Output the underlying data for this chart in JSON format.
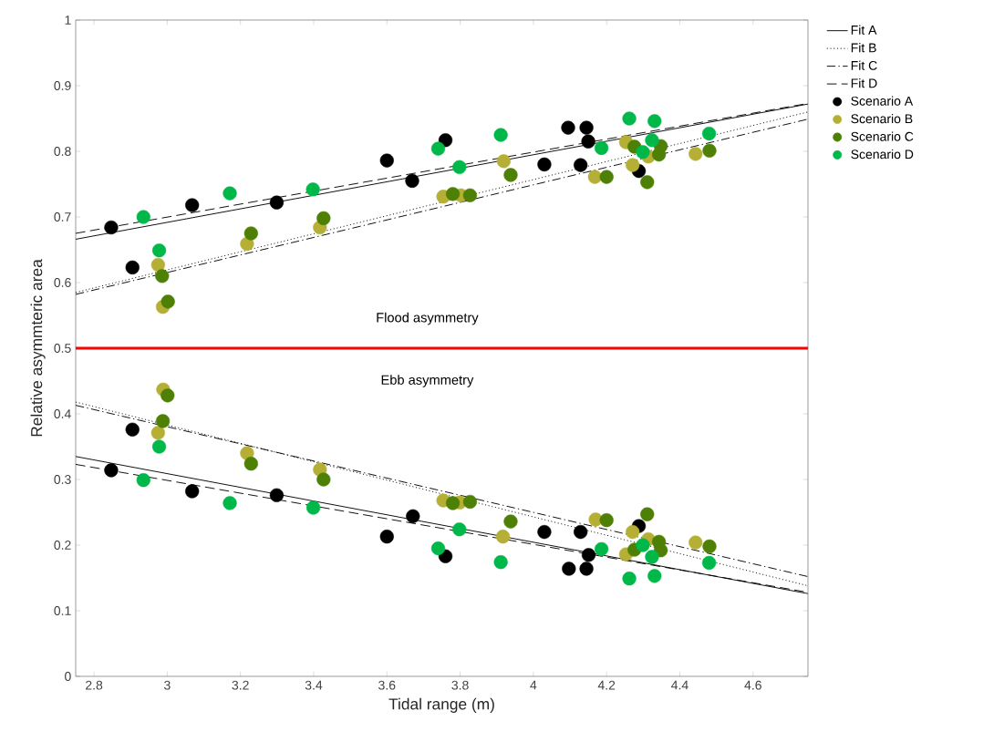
{
  "chart_data": {
    "type": "scatter",
    "xlabel": "Tidal range (m)",
    "ylabel": "Relative asymmteric area",
    "xlim": [
      2.75,
      4.75
    ],
    "ylim": [
      0,
      1
    ],
    "xticks": [
      2.8,
      3,
      3.2,
      3.4,
      3.6,
      3.8,
      4,
      4.2,
      4.4,
      4.6
    ],
    "yticks": [
      0,
      0.1,
      0.2,
      0.3,
      0.4,
      0.5,
      0.6,
      0.7,
      0.8,
      0.9,
      1
    ],
    "grid": false,
    "legend": "top right",
    "marker": "circle",
    "ref_lines": [
      {
        "axis": "y",
        "value": 0.5,
        "color": "#ff0000",
        "line_style": "solid"
      }
    ],
    "annotations": [
      "Flood asymmetry",
      "Ebb asymmetry"
    ],
    "series": [
      {
        "name": "Fit A",
        "type": "line",
        "color": "#000000",
        "line_style": "solid",
        "marker": "none",
        "x": [
          2.75,
          4.75
        ],
        "values": [
          0.666,
          0.872
        ]
      },
      {
        "name": "Fit B",
        "type": "line",
        "color": "#000000",
        "line_style": "dotted",
        "marker": "none",
        "x": [
          2.75,
          4.75
        ],
        "values": [
          0.585,
          0.86
        ]
      },
      {
        "name": "Fit C",
        "type": "line",
        "color": "#000000",
        "line_style": "dashdot",
        "marker": "none",
        "x": [
          2.75,
          4.75
        ],
        "values": [
          0.582,
          0.849
        ]
      },
      {
        "name": "Fit D",
        "type": "line",
        "color": "#000000",
        "line_style": "dashed",
        "marker": "none",
        "x": [
          2.75,
          4.75
        ],
        "values": [
          0.675,
          0.873
        ]
      },
      {
        "type": "line",
        "color": "#000000",
        "line_style": "solid",
        "marker": "none",
        "x": [
          2.75,
          4.75
        ],
        "values": [
          0.335,
          0.126
        ]
      },
      {
        "type": "line",
        "color": "#000000",
        "line_style": "dotted",
        "marker": "none",
        "x": [
          2.75,
          4.75
        ],
        "values": [
          0.418,
          0.138
        ]
      },
      {
        "type": "line",
        "color": "#000000",
        "line_style": "dashdot",
        "marker": "none",
        "x": [
          2.75,
          4.75
        ],
        "values": [
          0.413,
          0.152
        ]
      },
      {
        "type": "line",
        "color": "#000000",
        "line_style": "dashed",
        "marker": "none",
        "x": [
          2.75,
          4.75
        ],
        "values": [
          0.323,
          0.128
        ]
      },
      {
        "name": "Scenario A",
        "color": "#000000",
        "x": [
          2.847,
          2.905,
          3.068,
          3.299,
          3.6,
          3.669,
          3.76,
          4.095,
          4.145,
          4.15,
          4.03,
          4.129,
          4.288,
          2.847,
          2.905,
          3.068,
          3.299,
          3.6,
          3.671,
          3.76,
          4.03,
          4.129,
          4.151,
          4.097,
          4.145,
          4.288
        ],
        "values": [
          0.684,
          0.623,
          0.718,
          0.722,
          0.786,
          0.755,
          0.817,
          0.836,
          0.836,
          0.815,
          0.78,
          0.779,
          0.77,
          0.314,
          0.376,
          0.282,
          0.276,
          0.213,
          0.244,
          0.183,
          0.22,
          0.22,
          0.185,
          0.164,
          0.164,
          0.229
        ]
      },
      {
        "name": "Scenario B",
        "color": "#b5b035",
        "x": [
          2.975,
          2.988,
          3.218,
          3.417,
          3.754,
          3.802,
          3.919,
          4.168,
          4.253,
          4.271,
          4.314,
          4.443,
          2.989,
          2.975,
          3.218,
          3.417,
          3.754,
          3.799,
          3.917,
          4.17,
          4.271,
          4.253,
          4.314,
          4.443
        ],
        "values": [
          0.627,
          0.563,
          0.659,
          0.684,
          0.731,
          0.733,
          0.785,
          0.761,
          0.814,
          0.779,
          0.792,
          0.796,
          0.437,
          0.371,
          0.34,
          0.315,
          0.268,
          0.265,
          0.213,
          0.239,
          0.22,
          0.186,
          0.209,
          0.204
        ]
      },
      {
        "name": "Scenario C",
        "color": "#4d8005",
        "x": [
          2.986,
          3.002,
          3.229,
          3.427,
          3.78,
          3.827,
          3.938,
          4.2,
          4.276,
          4.311,
          4.343,
          4.348,
          4.481,
          3.001,
          2.988,
          3.229,
          3.427,
          3.78,
          3.827,
          3.938,
          4.2,
          4.276,
          4.311,
          4.343,
          4.348,
          4.481
        ],
        "values": [
          0.61,
          0.571,
          0.675,
          0.698,
          0.735,
          0.733,
          0.764,
          0.761,
          0.807,
          0.753,
          0.795,
          0.808,
          0.801,
          0.428,
          0.389,
          0.324,
          0.3,
          0.264,
          0.266,
          0.236,
          0.238,
          0.193,
          0.247,
          0.205,
          0.192,
          0.198
        ]
      },
      {
        "name": "Scenario D",
        "color": "#00b84a",
        "x": [
          2.935,
          2.978,
          3.171,
          3.398,
          3.74,
          3.798,
          3.911,
          4.186,
          4.262,
          4.331,
          4.324,
          4.299,
          4.48,
          2.935,
          2.978,
          3.171,
          3.399,
          3.74,
          3.798,
          3.911,
          4.186,
          4.262,
          4.331,
          4.324,
          4.299,
          4.48
        ],
        "values": [
          0.7,
          0.649,
          0.736,
          0.742,
          0.804,
          0.776,
          0.825,
          0.805,
          0.85,
          0.846,
          0.817,
          0.799,
          0.827,
          0.299,
          0.35,
          0.264,
          0.257,
          0.195,
          0.224,
          0.174,
          0.194,
          0.149,
          0.153,
          0.182,
          0.2,
          0.173
        ]
      }
    ]
  }
}
